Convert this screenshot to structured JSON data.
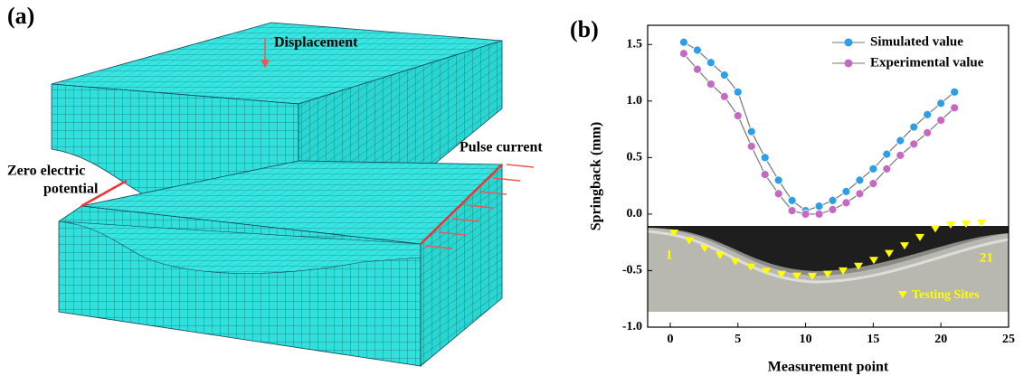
{
  "panel_a": {
    "label": "(a)",
    "displacement": "Displacement",
    "pulse": "Pulse current",
    "zero": [
      "Zero electric",
      "potential"
    ]
  },
  "chart_data": {
    "type": "line",
    "panel_label": "(b)",
    "x_label": "Measurement point",
    "y_label": "Springback (mm)",
    "x": [
      1,
      2,
      3,
      4,
      5,
      6,
      7,
      8,
      9,
      10,
      11,
      12,
      13,
      14,
      15,
      16,
      17,
      18,
      19,
      20,
      21
    ],
    "series": [
      {
        "name": "Simulated value",
        "color": "#2e9fe6",
        "values": [
          1.52,
          1.45,
          1.34,
          1.23,
          1.08,
          0.73,
          0.5,
          0.3,
          0.12,
          0.03,
          0.07,
          0.12,
          0.2,
          0.3,
          0.4,
          0.53,
          0.65,
          0.77,
          0.88,
          0.98,
          1.08
        ]
      },
      {
        "name": "Experimental value",
        "color": "#c46ac4",
        "values": [
          1.42,
          1.28,
          1.15,
          1.04,
          0.87,
          0.6,
          0.35,
          0.18,
          0.03,
          0.0,
          0.0,
          0.04,
          0.1,
          0.18,
          0.27,
          0.4,
          0.52,
          0.62,
          0.72,
          0.83,
          0.94
        ]
      }
    ],
    "xlim": [
      -1.67,
      25
    ],
    "ylim": [
      -1.0,
      1.67
    ],
    "xticks": [
      0,
      5,
      10,
      15,
      20,
      25
    ],
    "yticks": [
      {
        "value": -1,
        "label": "-1.0"
      },
      -0.5,
      {
        "value": 0,
        "label": "0.0"
      },
      0.5,
      {
        "value": 1,
        "label": "1.0"
      },
      1.5
    ],
    "legend": "upper right",
    "inset": {
      "first": "1",
      "last": "21",
      "sites": "Testing Sites"
    }
  }
}
